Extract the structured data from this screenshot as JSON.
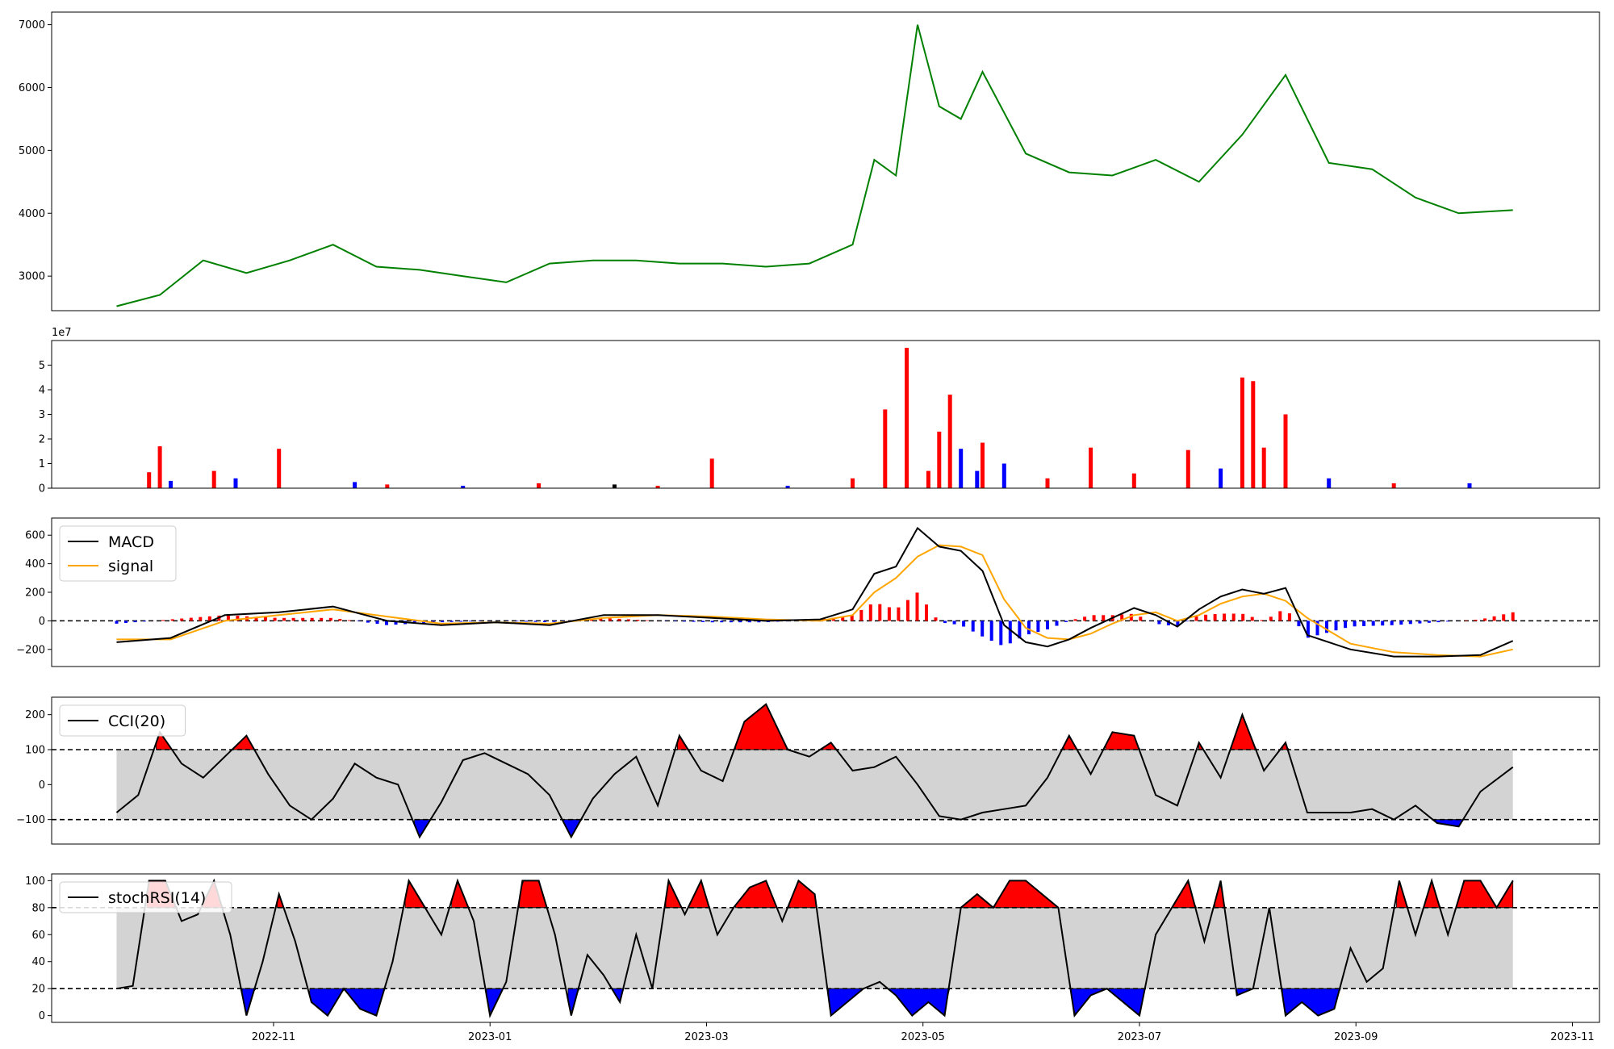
{
  "figure": {
    "x_tick_labels": [
      "2022-11",
      "2023-01",
      "2023-03",
      "2023-05",
      "2023-07",
      "2023-09",
      "2023-11"
    ],
    "x_tick_positions": [
      1.45,
      3.45,
      5.45,
      7.45,
      9.45,
      11.45,
      13.45
    ],
    "x_range": [
      -0.6,
      13.7
    ],
    "data_x_range": [
      0,
      12.9
    ]
  },
  "chart_data": [
    {
      "type": "line",
      "name": "price",
      "color": "#008000",
      "ylim": [
        2450,
        7200
      ],
      "y_ticks": [
        3000,
        4000,
        5000,
        6000,
        7000
      ],
      "y_tick_labels": [
        "3000",
        "4000",
        "5000",
        "6000",
        "7000"
      ],
      "x": [
        0,
        0.4,
        0.8,
        1.2,
        1.6,
        2.0,
        2.4,
        2.8,
        3.2,
        3.6,
        4.0,
        4.4,
        4.8,
        5.2,
        5.6,
        6.0,
        6.4,
        6.8,
        7.0,
        7.2,
        7.4,
        7.6,
        7.8,
        8.0,
        8.4,
        8.8,
        9.2,
        9.6,
        10.0,
        10.4,
        10.8,
        11.2,
        11.6,
        12.0,
        12.4,
        12.9
      ],
      "values": [
        2520,
        2700,
        3250,
        3050,
        3250,
        3500,
        3150,
        3100,
        3000,
        2900,
        3200,
        3250,
        3250,
        3200,
        3200,
        3150,
        3200,
        3500,
        4850,
        4600,
        7000,
        5700,
        5500,
        6250,
        4950,
        4650,
        4600,
        4850,
        4500,
        5250,
        6200,
        4800,
        4700,
        4250,
        4000,
        4050
      ]
    },
    {
      "type": "bar",
      "name": "volume",
      "ylim": [
        0,
        60000000
      ],
      "y_ticks": [
        0,
        10000000,
        20000000,
        30000000,
        40000000,
        50000000
      ],
      "y_tick_labels": [
        "0",
        "1",
        "2",
        "3",
        "4",
        "5"
      ],
      "offset_label": "1e7",
      "x": [
        0.3,
        0.4,
        0.5,
        0.9,
        1.1,
        1.5,
        2.2,
        2.5,
        3.2,
        3.9,
        4.6,
        5.0,
        5.5,
        6.2,
        6.8,
        7.1,
        7.3,
        7.5,
        7.6,
        7.7,
        7.8,
        7.95,
        8.0,
        8.2,
        8.6,
        9.0,
        9.4,
        9.9,
        10.2,
        10.4,
        10.5,
        10.6,
        10.8,
        11.2,
        11.8,
        12.5
      ],
      "values": [
        6500000,
        17000000,
        3000000,
        7000000,
        4000000,
        16000000,
        2500000,
        1500000,
        1000000,
        2000000,
        1500000,
        1000000,
        12000000,
        1000000,
        4000000,
        32000000,
        57000000,
        7000000,
        23000000,
        38000000,
        16000000,
        7000000,
        18500000,
        10000000,
        4000000,
        16500000,
        6000000,
        15500000,
        8000000,
        45000000,
        43500000,
        16500000,
        30000000,
        4000000,
        2000000,
        2000000
      ],
      "colors": [
        "red",
        "red",
        "blue",
        "red",
        "blue",
        "red",
        "blue",
        "red",
        "blue",
        "red",
        "black",
        "red",
        "red",
        "blue",
        "red",
        "red",
        "red",
        "red",
        "red",
        "red",
        "blue",
        "blue",
        "red",
        "blue",
        "red",
        "red",
        "red",
        "red",
        "blue",
        "red",
        "red",
        "red",
        "red",
        "blue",
        "red",
        "blue"
      ]
    },
    {
      "type": "line",
      "name": "macd",
      "ylim": [
        -320,
        720
      ],
      "y_ticks": [
        -200,
        0,
        200,
        400,
        600
      ],
      "y_tick_labels": [
        "−200",
        "0",
        "200",
        "400",
        "600"
      ],
      "reference_lines": [
        0
      ],
      "series": [
        {
          "name": "MACD",
          "color": "#000000",
          "x": [
            0,
            0.5,
            1.0,
            1.5,
            2.0,
            2.5,
            3.0,
            3.5,
            4.0,
            4.5,
            5.0,
            5.5,
            6.0,
            6.5,
            6.8,
            7.0,
            7.2,
            7.4,
            7.6,
            7.8,
            8.0,
            8.2,
            8.4,
            8.6,
            8.8,
            9.0,
            9.2,
            9.4,
            9.6,
            9.8,
            10.0,
            10.2,
            10.4,
            10.6,
            10.8,
            11.0,
            11.4,
            11.8,
            12.2,
            12.6,
            12.9
          ],
          "values": [
            -150,
            -120,
            40,
            60,
            100,
            0,
            -30,
            -10,
            -30,
            40,
            40,
            20,
            0,
            10,
            80,
            330,
            380,
            650,
            520,
            490,
            350,
            -30,
            -150,
            -180,
            -130,
            -50,
            20,
            90,
            40,
            -40,
            80,
            170,
            220,
            190,
            230,
            -100,
            -200,
            -250,
            -250,
            -240,
            -140
          ]
        },
        {
          "name": "signal",
          "color": "#ffa500",
          "x": [
            0,
            0.5,
            1.0,
            1.5,
            2.0,
            2.5,
            3.0,
            3.5,
            4.0,
            4.5,
            5.0,
            5.5,
            6.0,
            6.5,
            6.8,
            7.0,
            7.2,
            7.4,
            7.6,
            7.8,
            8.0,
            8.2,
            8.4,
            8.6,
            8.8,
            9.0,
            9.2,
            9.4,
            9.6,
            9.8,
            10.0,
            10.2,
            10.4,
            10.6,
            10.8,
            11.0,
            11.4,
            11.8,
            12.2,
            12.6,
            12.9
          ],
          "values": [
            -130,
            -130,
            0,
            40,
            80,
            30,
            -20,
            -10,
            -20,
            20,
            40,
            30,
            10,
            0,
            40,
            200,
            300,
            450,
            530,
            520,
            460,
            150,
            -50,
            -120,
            -130,
            -90,
            -20,
            40,
            60,
            0,
            40,
            120,
            170,
            190,
            140,
            20,
            -160,
            -220,
            -240,
            -250,
            -200
          ]
        }
      ]
    },
    {
      "type": "line",
      "name": "cci",
      "ylim": [
        -170,
        250
      ],
      "y_ticks": [
        -100,
        0,
        100,
        200
      ],
      "y_tick_labels": [
        "−100",
        "0",
        "100",
        "200"
      ],
      "reference_lines": [
        100,
        -100
      ],
      "series": [
        {
          "name": "CCI(20)",
          "color": "#000000",
          "x": [
            0,
            0.2,
            0.4,
            0.6,
            0.8,
            1.0,
            1.2,
            1.4,
            1.6,
            1.8,
            2.0,
            2.2,
            2.4,
            2.6,
            2.8,
            3.0,
            3.2,
            3.4,
            3.6,
            3.8,
            4.0,
            4.2,
            4.4,
            4.6,
            4.8,
            5.0,
            5.2,
            5.4,
            5.6,
            5.8,
            6.0,
            6.2,
            6.4,
            6.6,
            6.8,
            7.0,
            7.2,
            7.4,
            7.6,
            7.8,
            8.0,
            8.2,
            8.4,
            8.6,
            8.8,
            9.0,
            9.2,
            9.4,
            9.6,
            9.8,
            10.0,
            10.2,
            10.4,
            10.6,
            10.8,
            11.0,
            11.2,
            11.4,
            11.6,
            11.8,
            12.0,
            12.2,
            12.4,
            12.6,
            12.9
          ],
          "values": [
            -80,
            -30,
            150,
            60,
            20,
            80,
            140,
            30,
            -60,
            -100,
            -40,
            60,
            20,
            0,
            -150,
            -50,
            70,
            90,
            60,
            30,
            -30,
            -150,
            -40,
            30,
            80,
            -60,
            140,
            40,
            10,
            180,
            230,
            100,
            80,
            120,
            40,
            50,
            80,
            0,
            -90,
            -100,
            -80,
            -70,
            -60,
            20,
            140,
            30,
            150,
            140,
            -30,
            -60,
            120,
            20,
            200,
            40,
            120,
            -80,
            -80,
            -80,
            -70,
            -100,
            -60,
            -110,
            -120,
            -20,
            50
          ]
        }
      ]
    },
    {
      "type": "line",
      "name": "stochrsi",
      "ylim": [
        -5,
        105
      ],
      "y_ticks": [
        0,
        20,
        40,
        60,
        80,
        100
      ],
      "y_tick_labels": [
        "0",
        "20",
        "40",
        "60",
        "80",
        "100"
      ],
      "reference_lines": [
        80,
        20
      ],
      "series": [
        {
          "name": "stochRSI(14)",
          "color": "#000000",
          "x": [
            0,
            0.15,
            0.3,
            0.45,
            0.6,
            0.75,
            0.9,
            1.05,
            1.2,
            1.35,
            1.5,
            1.65,
            1.8,
            1.95,
            2.1,
            2.25,
            2.4,
            2.55,
            2.7,
            2.85,
            3.0,
            3.15,
            3.3,
            3.45,
            3.6,
            3.75,
            3.9,
            4.05,
            4.2,
            4.35,
            4.5,
            4.65,
            4.8,
            4.95,
            5.1,
            5.25,
            5.4,
            5.55,
            5.7,
            5.85,
            6.0,
            6.15,
            6.3,
            6.45,
            6.6,
            6.75,
            6.9,
            7.05,
            7.2,
            7.35,
            7.5,
            7.65,
            7.8,
            7.95,
            8.1,
            8.25,
            8.4,
            8.55,
            8.7,
            8.85,
            9.0,
            9.15,
            9.3,
            9.45,
            9.6,
            9.75,
            9.9,
            10.05,
            10.2,
            10.35,
            10.5,
            10.65,
            10.8,
            10.95,
            11.1,
            11.25,
            11.4,
            11.55,
            11.7,
            11.85,
            12.0,
            12.15,
            12.3,
            12.45,
            12.6,
            12.75,
            12.9
          ],
          "values": [
            20,
            22,
            100,
            100,
            70,
            75,
            100,
            60,
            0,
            40,
            90,
            55,
            10,
            0,
            20,
            5,
            0,
            40,
            100,
            80,
            60,
            100,
            70,
            0,
            25,
            100,
            100,
            60,
            0,
            45,
            30,
            10,
            60,
            20,
            100,
            75,
            100,
            60,
            80,
            95,
            100,
            70,
            100,
            90,
            0,
            10,
            20,
            25,
            15,
            0,
            10,
            0,
            80,
            90,
            80,
            100,
            100,
            90,
            80,
            0,
            15,
            20,
            10,
            0,
            60,
            80,
            100,
            55,
            100,
            15,
            20,
            80,
            0,
            10,
            0,
            5,
            50,
            25,
            35,
            100,
            60,
            100,
            60,
            100,
            100,
            80,
            100
          ]
        }
      ]
    }
  ]
}
